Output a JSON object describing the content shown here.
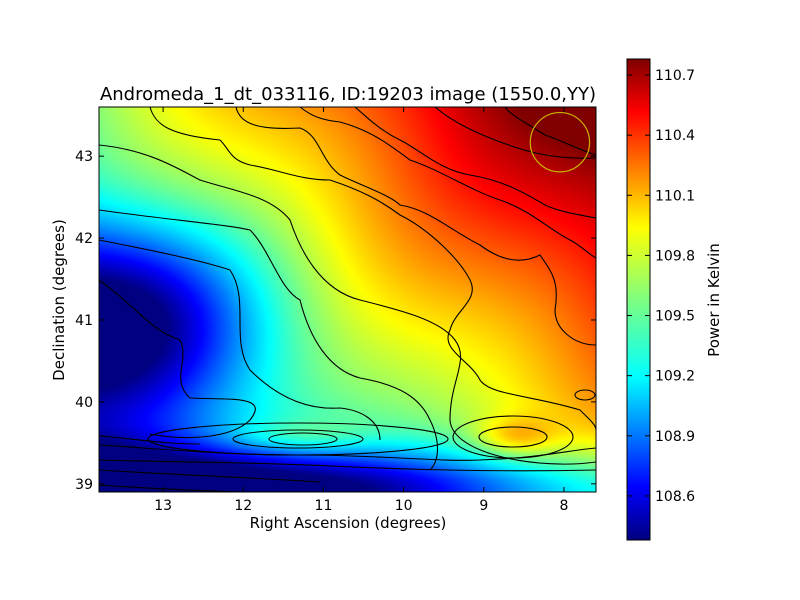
{
  "chart_data": {
    "type": "heatmap",
    "title": "Andromeda_1_dt_033116, ID:19203 image (1550.0,YY)",
    "xlabel": "Right Ascension (degrees)",
    "ylabel": "Declination (degrees)",
    "xlim": [
      13.8,
      7.6
    ],
    "ylim": [
      38.9,
      43.6
    ],
    "x_ticks": [
      13,
      12,
      11,
      10,
      9,
      8
    ],
    "y_ticks": [
      39,
      40,
      41,
      42,
      43
    ],
    "colorbar": {
      "label": "Power in Kelvin",
      "range": [
        108.38,
        110.78
      ],
      "ticks": [
        108.6,
        108.9,
        109.2,
        109.5,
        109.8,
        110.1,
        110.4,
        110.7
      ],
      "colormap": "jet"
    },
    "field_features": [
      {
        "kind": "gradient",
        "low_corner": "bottom-left",
        "high_corner": "top-right"
      },
      {
        "kind": "peak",
        "ra": 8.6,
        "dec": 39.55,
        "value": 110.35
      },
      {
        "kind": "ridge",
        "ra": 11.3,
        "dec": 39.55,
        "value": 109.55
      },
      {
        "kind": "minimum",
        "ra": 13.6,
        "dec": 39.0,
        "value": 108.4
      }
    ],
    "beam_marker": {
      "ra": 8.05,
      "dec": 43.17,
      "radius_deg": 0.37,
      "color": "#c8b400"
    },
    "contour_color": "#000000"
  }
}
